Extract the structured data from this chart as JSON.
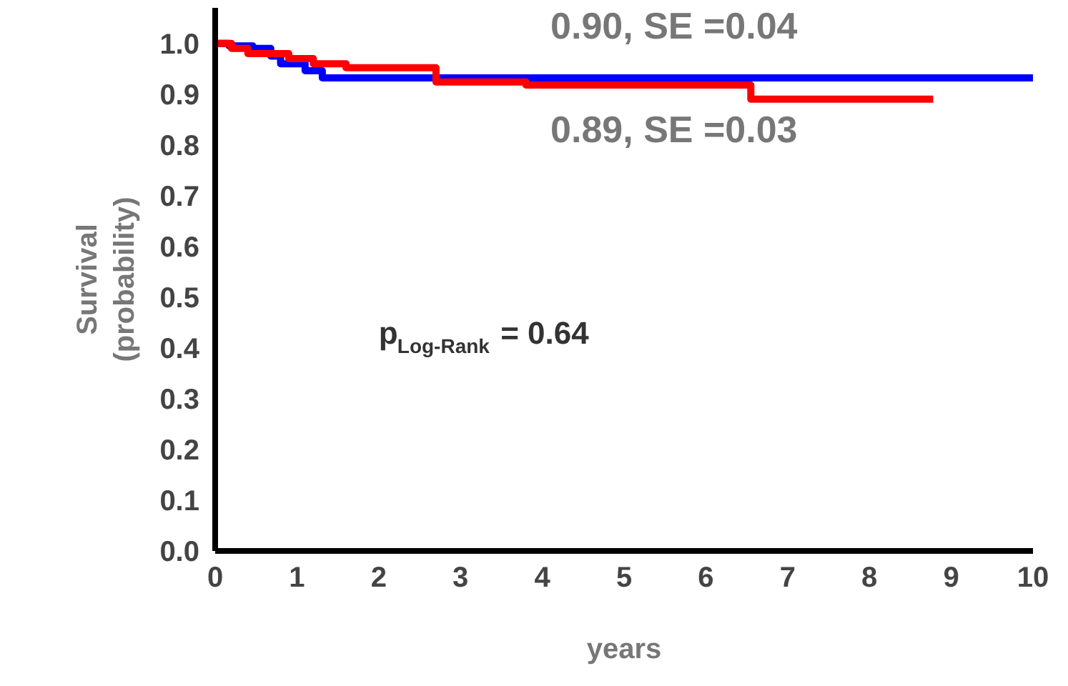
{
  "chart_data": {
    "type": "step",
    "xlabel": "years",
    "ylabel": "Survival (probability)",
    "xlim": [
      0,
      10
    ],
    "ylim": [
      0,
      1.07
    ],
    "xticks": [
      0,
      1,
      2,
      3,
      4,
      5,
      6,
      7,
      8,
      9,
      10
    ],
    "yticks": [
      {
        "value": 0,
        "label": "0.0"
      },
      0.1,
      0.2,
      0.3,
      0.4,
      0.5,
      0.6,
      0.7,
      0.8,
      0.9,
      {
        "value": 1,
        "label": "1.0"
      }
    ],
    "grid": false,
    "line_style": "solid",
    "marker": "none",
    "series": [
      {
        "color": "#0000ff",
        "x": [
          0,
          0.17,
          0.46,
          0.68,
          0.8,
          1.1,
          1.31,
          10
        ],
        "values": [
          1.0,
          0.995,
          0.99,
          0.975,
          0.96,
          0.946,
          0.932,
          0.932
        ]
      },
      {
        "color": "#ff0000",
        "x": [
          0,
          0.2,
          0.4,
          0.9,
          1.2,
          1.6,
          2.7,
          3.8,
          6.55,
          8.78
        ],
        "values": [
          1.0,
          0.99,
          0.98,
          0.97,
          0.96,
          0.952,
          0.924,
          0.918,
          0.89,
          0.89
        ]
      }
    ],
    "annotations": [
      "0.90, SE =0.04",
      "0.89, SE =0.03",
      "p$_{Log-Rank}$ = 0.64"
    ]
  }
}
